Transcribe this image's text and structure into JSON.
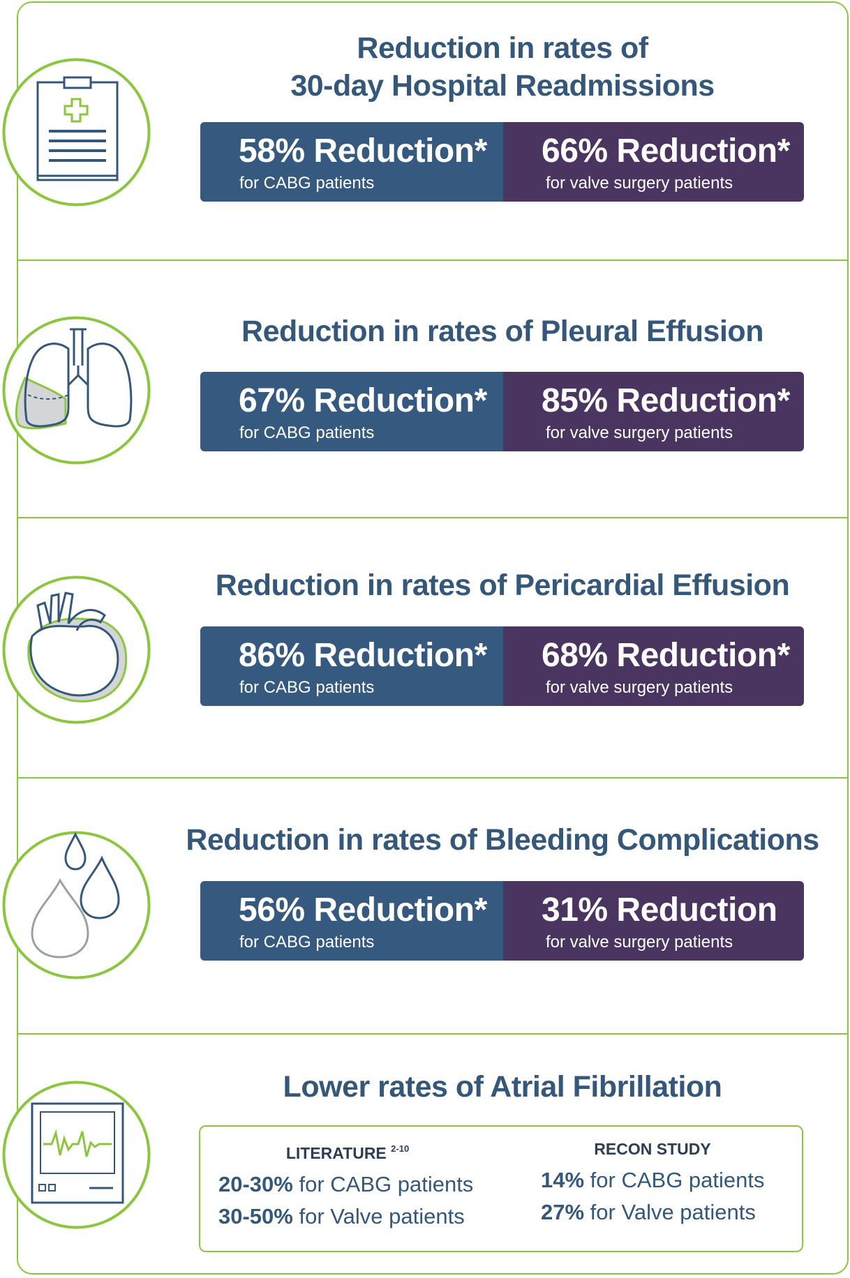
{
  "colors": {
    "green": "#8cc63f",
    "blue": "#36597f",
    "purple": "#4a3560",
    "title": "#34577a"
  },
  "sections": [
    {
      "icon": "clipboard-icon",
      "title_lines": [
        "Reduction in rates of",
        "30-day Hospital Readmissions"
      ],
      "left": {
        "value": "58% Reduction*",
        "label": "for CABG patients"
      },
      "right": {
        "value": "66% Reduction*",
        "label": "for valve surgery patients"
      }
    },
    {
      "icon": "lungs-icon",
      "title_lines": [
        "Reduction in rates of Pleural Effusion"
      ],
      "left": {
        "value": "67% Reduction*",
        "label": "for CABG patients"
      },
      "right": {
        "value": "85% Reduction*",
        "label": "for valve surgery patients"
      }
    },
    {
      "icon": "heart-icon",
      "title_lines": [
        "Reduction in rates of Pericardial Effusion"
      ],
      "left": {
        "value": "86% Reduction*",
        "label": "for CABG patients"
      },
      "right": {
        "value": "68% Reduction*",
        "label": "for valve surgery patients"
      }
    },
    {
      "icon": "blood-drops-icon",
      "title_lines": [
        "Reduction in rates of Bleeding Complications"
      ],
      "left": {
        "value": "56% Reduction*",
        "label": "for CABG patients"
      },
      "right": {
        "value": "31% Reduction",
        "label": "for valve surgery patients"
      }
    }
  ],
  "atrial": {
    "icon": "monitor-icon",
    "title": "Lower rates of Atrial Fibrillation",
    "literature": {
      "heading": "LITERATURE",
      "superscript": "2-10",
      "rows": [
        {
          "value": "20-30%",
          "text": " for CABG patients"
        },
        {
          "value": "30-50%",
          "text": " for Valve patients"
        }
      ]
    },
    "recon": {
      "heading": "RECON STUDY",
      "rows": [
        {
          "value": "14%",
          "text": " for CABG patients"
        },
        {
          "value": "27%",
          "text": " for Valve patients"
        }
      ]
    }
  }
}
